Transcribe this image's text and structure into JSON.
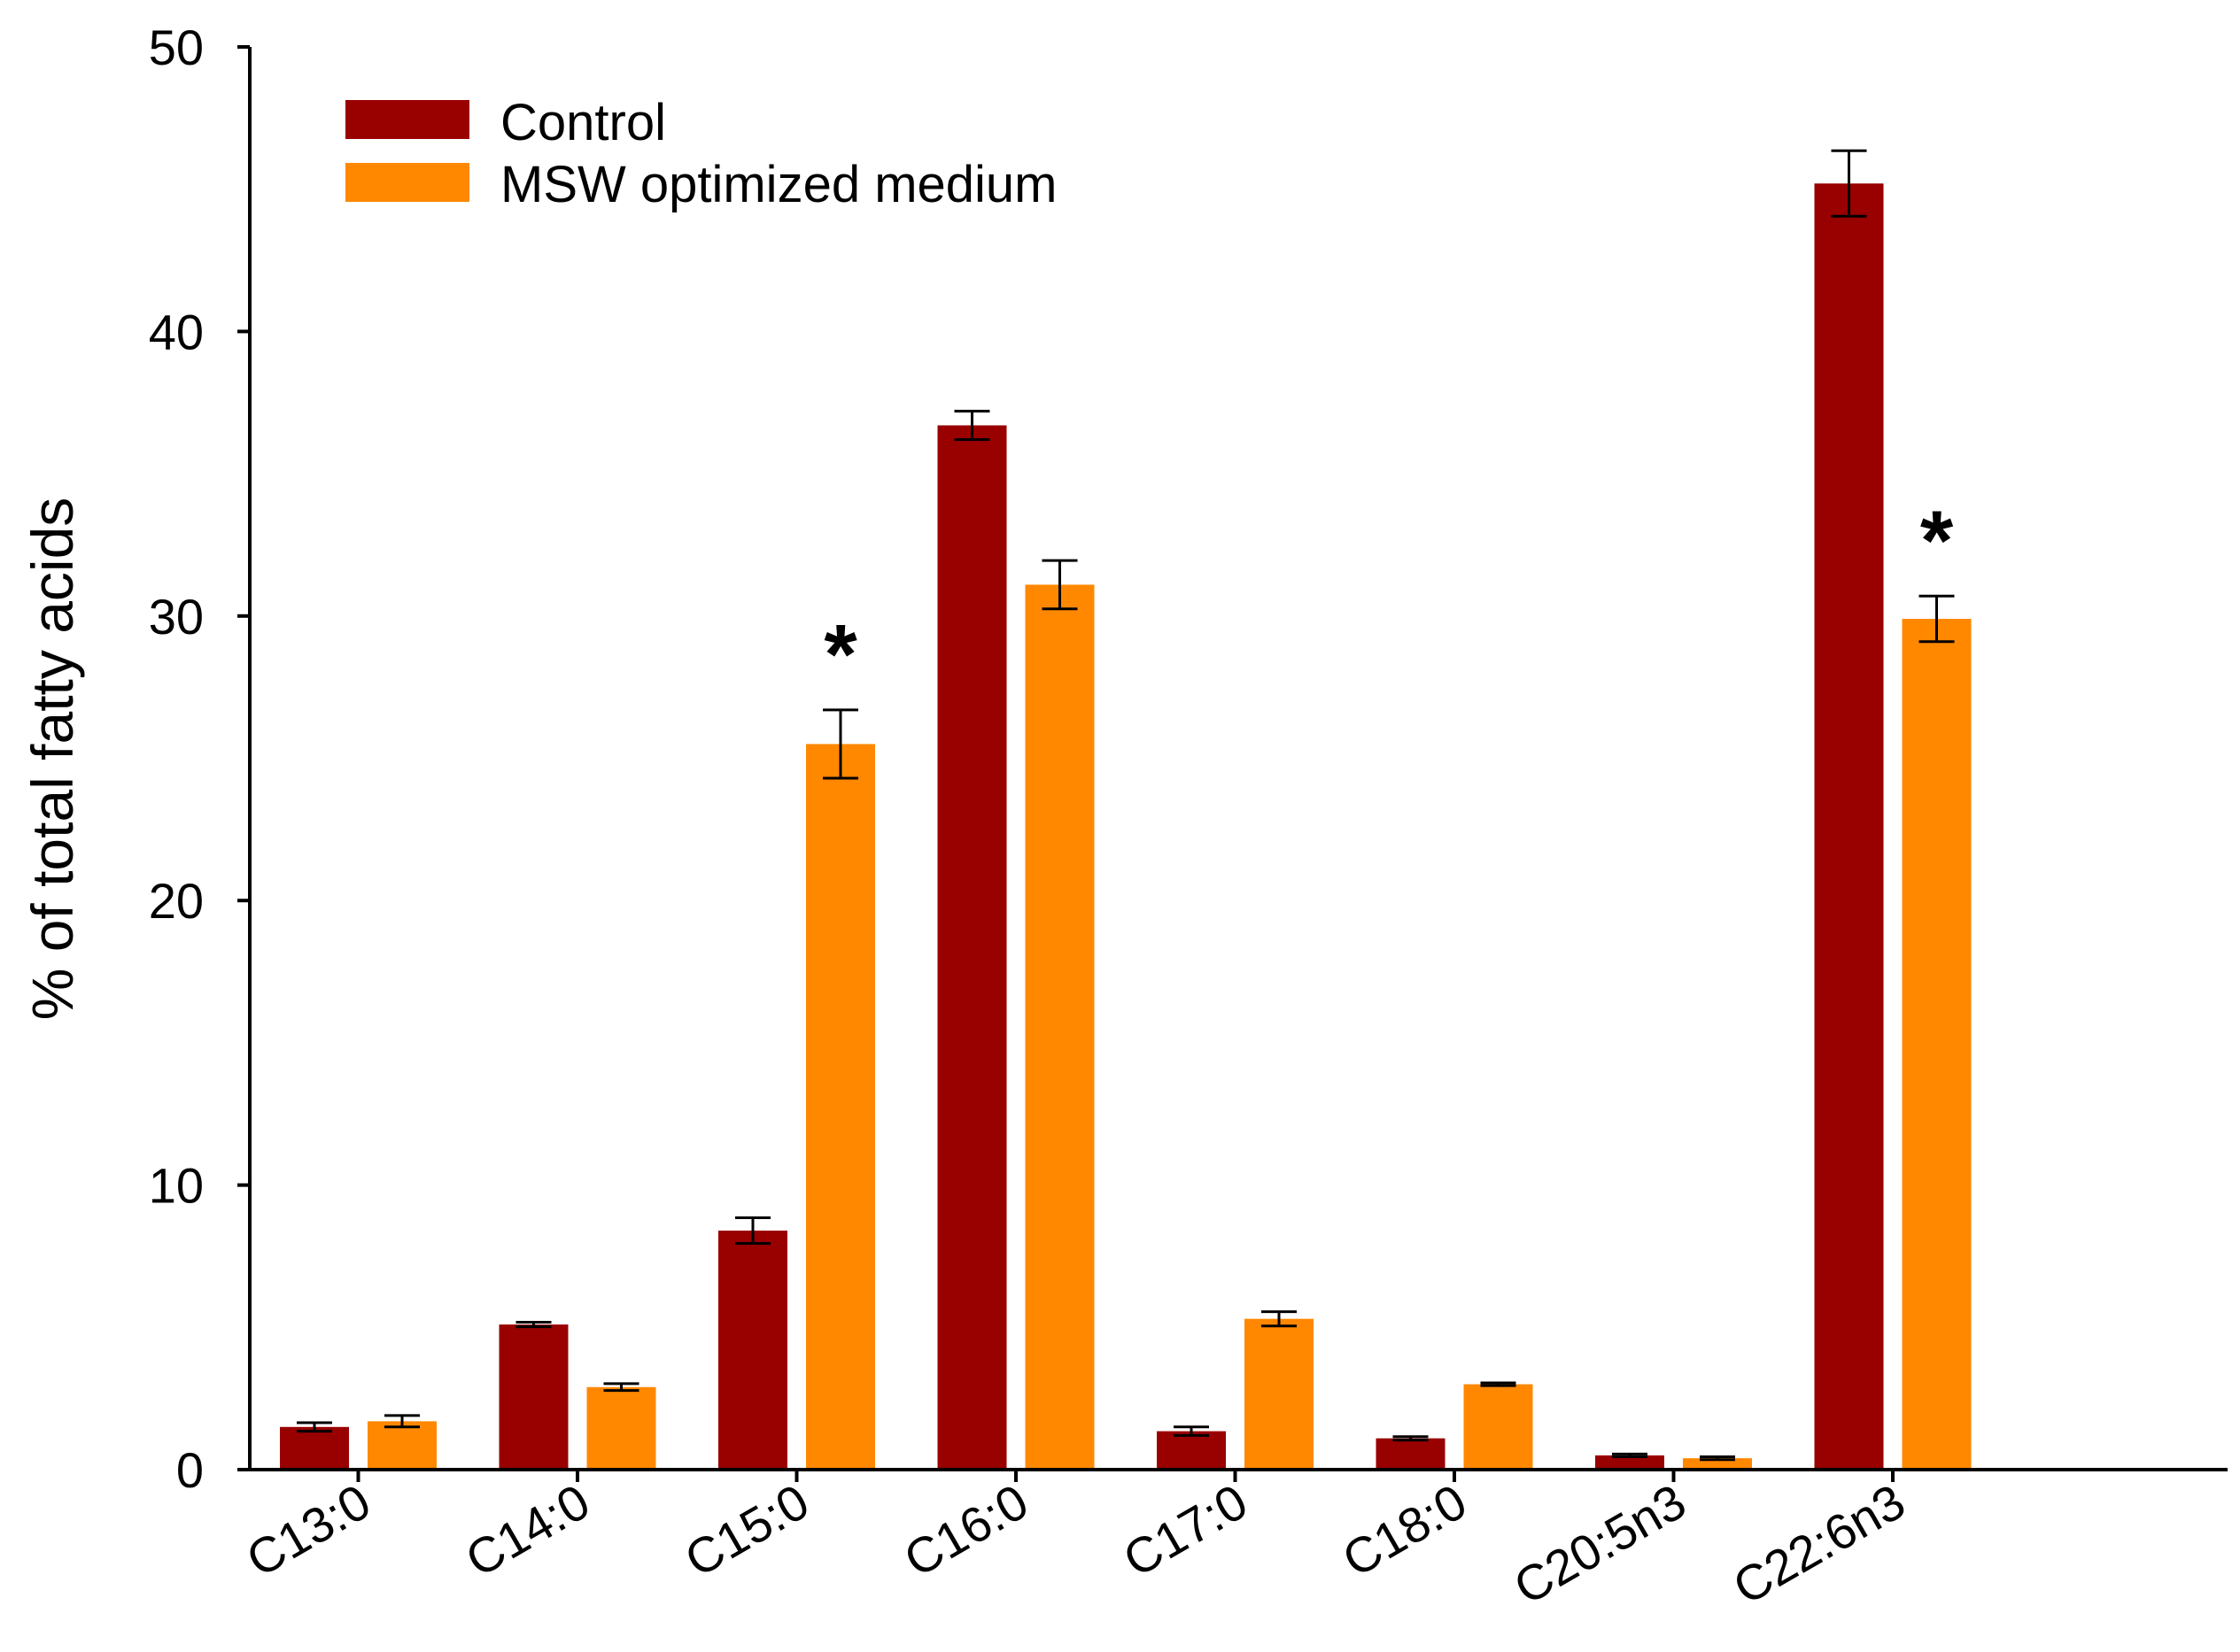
{
  "chart_data": {
    "type": "bar",
    "title": "",
    "xlabel": "",
    "ylabel": "% of total fatty acids",
    "ylim": [
      0,
      50
    ],
    "yticks": [
      0,
      10,
      20,
      30,
      40,
      50
    ],
    "categories": [
      "C13:0",
      "C14:0",
      "C15:0",
      "C16:0",
      "C17:0",
      "C18:0",
      "C20:5n3",
      "C22:6n3"
    ],
    "series": [
      {
        "name": "Control",
        "color": "#990000",
        "values": [
          1.5,
          5.1,
          8.4,
          36.7,
          1.35,
          1.1,
          0.5,
          45.2
        ],
        "errors": [
          0.15,
          0.08,
          0.45,
          0.5,
          0.15,
          0.06,
          0.05,
          1.15
        ]
      },
      {
        "name": "MSW optimized medium",
        "color": "#FF8800",
        "values": [
          1.7,
          2.9,
          25.5,
          31.1,
          5.3,
          3.0,
          0.4,
          29.9
        ],
        "errors": [
          0.2,
          0.12,
          1.2,
          0.85,
          0.25,
          0.05,
          0.05,
          0.8
        ]
      }
    ],
    "annotations": [
      {
        "text": "*",
        "category": "C15:0",
        "series": "MSW optimized medium"
      },
      {
        "text": "*",
        "category": "C22:6n3",
        "series": "MSW optimized medium"
      }
    ],
    "legend": "top-left",
    "grid": false
  }
}
